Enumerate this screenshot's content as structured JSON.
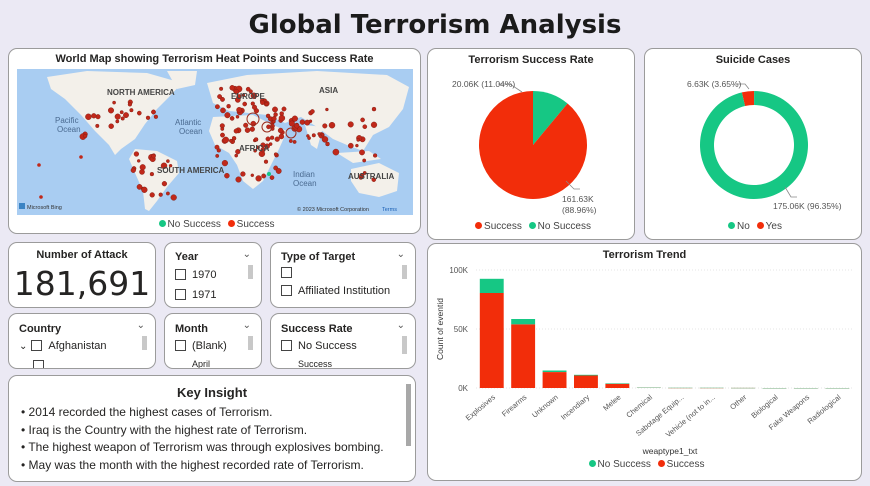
{
  "page_title": "Global Terrorism Analysis",
  "map": {
    "title": "World Map showing Terrorism Heat Points and Success Rate",
    "labels": {
      "north_america": "NORTH AMERICA",
      "europe": "EUROPE",
      "asia": "ASIA",
      "pacific": "Pacific",
      "pacific2": "Ocean",
      "atlantic": "Atlantic",
      "atlantic2": "Ocean",
      "africa": "AFRICA",
      "south_america": "SOUTH AMERICA",
      "indian": "Indian",
      "indian2": "Ocean",
      "australia": "AUSTRALIA"
    },
    "bing": "Microsoft Bing",
    "copyright": "© 2023 Microsoft Corporation",
    "terms": "Terms",
    "legend": [
      "No Success",
      "Success"
    ]
  },
  "success_rate": {
    "title": "Terrorism Success Rate",
    "no_success_label": "20.06K (11.04%)",
    "success_label_1": "161.63K",
    "success_label_2": "(88.96%)",
    "legend": [
      "Success",
      "No Success"
    ],
    "chart_data": {
      "type": "pie",
      "slices": [
        {
          "name": "Success",
          "value": 161630,
          "percent": 88.96,
          "color": "#f22d0a"
        },
        {
          "name": "No Success",
          "value": 20060,
          "percent": 11.04,
          "color": "#16c784"
        }
      ]
    }
  },
  "suicide": {
    "title": "Suicide Cases",
    "yes_label": "6.63K (3.65%)",
    "no_label": "175.06K (96.35%)",
    "legend": [
      "No",
      "Yes"
    ],
    "chart_data": {
      "type": "pie",
      "slices": [
        {
          "name": "No",
          "value": 175060,
          "percent": 96.35,
          "color": "#16c784"
        },
        {
          "name": "Yes",
          "value": 6630,
          "percent": 3.65,
          "color": "#f22d0a"
        }
      ]
    }
  },
  "kpi": {
    "title": "Number of Attack",
    "value": "181,691"
  },
  "year_slicer": {
    "title": "Year",
    "options": [
      "1970",
      "1971"
    ]
  },
  "target_slicer": {
    "title": "Type of Target",
    "options": [
      "",
      "Affiliated Institution"
    ]
  },
  "country_slicer": {
    "title": "Country",
    "options": [
      "Afghanistan"
    ]
  },
  "month_slicer": {
    "title": "Month",
    "options": [
      "(Blank)",
      "April"
    ]
  },
  "successrate_slicer": {
    "title": "Success Rate",
    "options": [
      "No Success",
      "Success"
    ]
  },
  "insight": {
    "title": "Key Insight",
    "lines": [
      "2014 recorded the highest cases of Terrorism.",
      "Iraq is the Country with the highest rate of Terrorism.",
      "The highest weapon of Terrorism was through explosives bombing.",
      "May was the month with the highest recorded rate of Terrorism."
    ]
  },
  "trend": {
    "title": "Terrorism Trend",
    "legend": [
      "No Success",
      "Success"
    ],
    "chart_data": {
      "type": "bar",
      "stacked": true,
      "title": "Terrorism Trend",
      "xlabel": "weaptype1_txt",
      "ylabel": "Count of eventid",
      "ylim": [
        0,
        100000
      ],
      "yticks": [
        0,
        50000,
        100000
      ],
      "ytick_labels": [
        "0K",
        "50K",
        "100K"
      ],
      "categories": [
        "Explosives",
        "Firearms",
        "Unknown",
        "Incendiary",
        "Melee",
        "Chemical",
        "Sabotage Equip...",
        "Vehicle (not to in...",
        "Other",
        "Biological",
        "Fake Weapons",
        "Radiological"
      ],
      "series": [
        {
          "name": "Success",
          "color": "#f22d0a",
          "values": [
            80500,
            54000,
            13500,
            10600,
            3600,
            250,
            100,
            100,
            80,
            20,
            10,
            10
          ]
        },
        {
          "name": "No Success",
          "color": "#16c784",
          "values": [
            12000,
            4500,
            1300,
            600,
            400,
            60,
            40,
            30,
            30,
            10,
            20,
            5
          ]
        }
      ]
    }
  }
}
